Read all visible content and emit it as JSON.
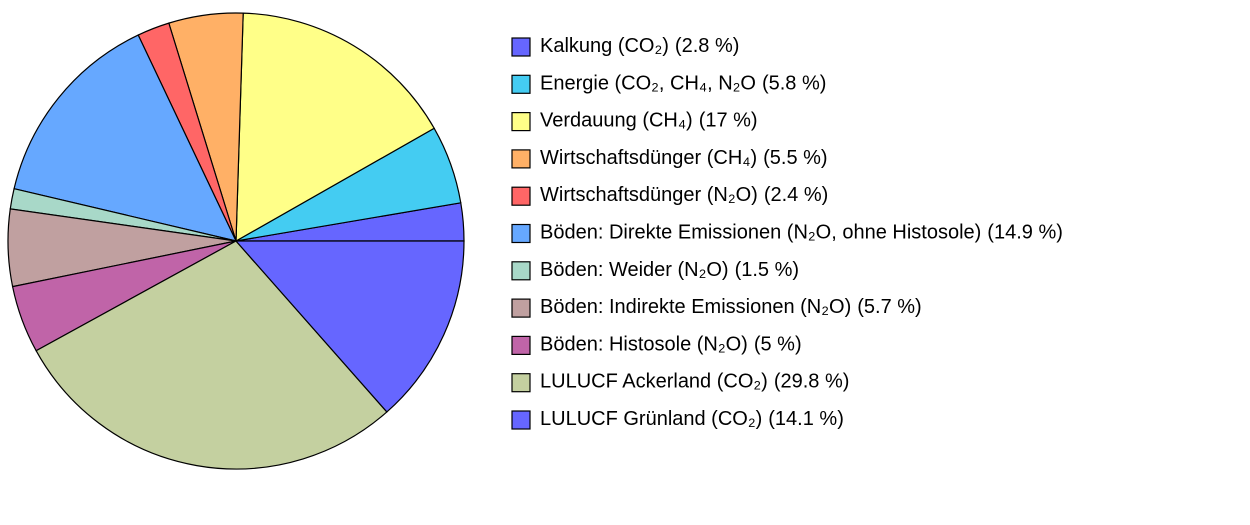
{
  "chart_data": {
    "type": "pie",
    "categories": [
      "Kalkung (CO₂)",
      "Energie (CO₂, CH₄, N₂O",
      "Verdauung (CH₄)",
      "Wirtschaftsdünger (CH₄)",
      "Wirtschaftsdünger (N₂O)",
      "Böden: Direkte Emissionen (N₂O, ohne Histosole)",
      "Böden: Weider (N₂O)",
      "Böden: Indirekte Emissionen (N₂O)",
      "Böden: Histosole (N₂O)",
      "LULUCF Ackerland (CO₂)",
      "LULUCF Grünland (CO₂)"
    ],
    "values": [
      2.8,
      5.8,
      17,
      5.5,
      2.4,
      14.9,
      1.5,
      5.7,
      5,
      29.8,
      14.1
    ],
    "value_labels": [
      "(2.8 %)",
      "(5.8 %)",
      "(17 %)",
      "(5.5 %)",
      "(2.4 %)",
      "(14.9 %)",
      "(1.5 %)",
      "(5.7 %)",
      "(5 %)",
      "(29.8 %)",
      "(14.1 %)"
    ],
    "colors": [
      "#6666ff",
      "#44ccf2",
      "#ffff88",
      "#ffb066",
      "#ff6666",
      "#66a8ff",
      "#a8d8c8",
      "#c0a0a0",
      "#c064a8",
      "#c4d0a0",
      "#6666ff"
    ],
    "legend": "right"
  }
}
